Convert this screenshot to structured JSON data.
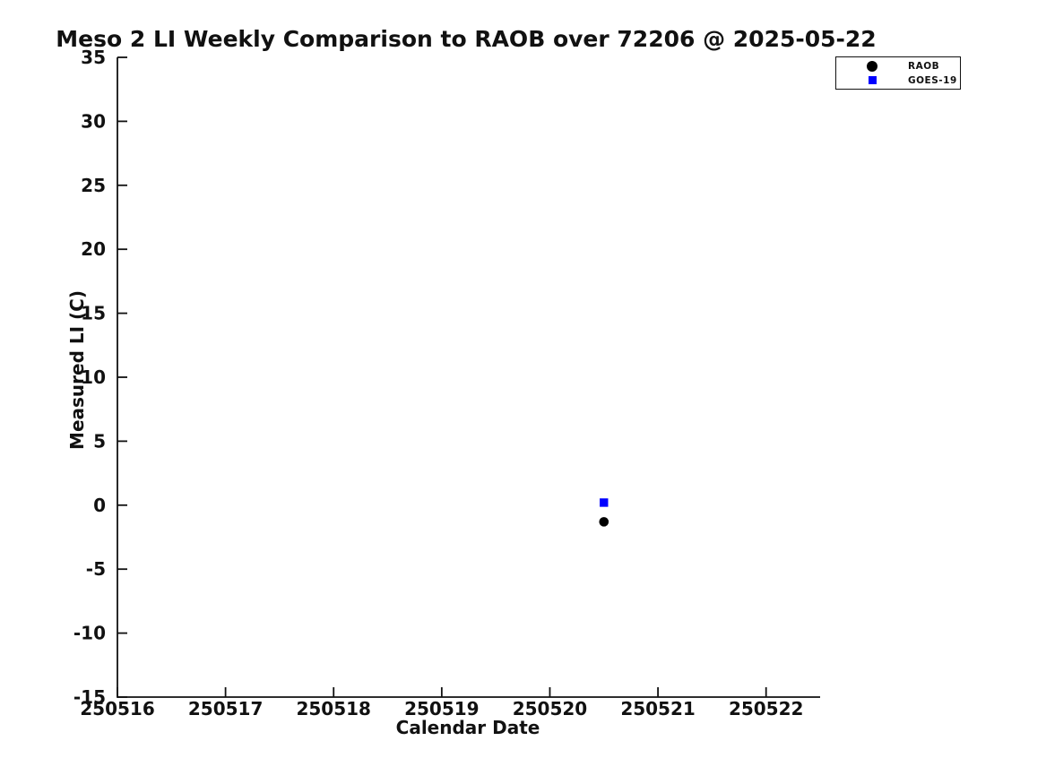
{
  "chart_data": {
    "type": "scatter",
    "title": "Meso 2 LI Weekly Comparison to RAOB over 72206 @ 2025-05-22",
    "xlabel": "Calendar Date",
    "ylabel": "Measured LI (C)",
    "xlim": [
      250516,
      250522.5
    ],
    "ylim": [
      -15,
      35
    ],
    "x_ticks": [
      250516,
      250517,
      250518,
      250519,
      250520,
      250521,
      250522
    ],
    "y_ticks": [
      -15,
      -10,
      -5,
      0,
      5,
      10,
      15,
      20,
      25,
      30,
      35
    ],
    "grid": false,
    "legend_position": "top-right",
    "series": [
      {
        "name": "RAOB",
        "marker": "circle",
        "color": "#000000",
        "points": [
          {
            "x": 250520.5,
            "y": -1.3
          }
        ]
      },
      {
        "name": "GOES-19",
        "marker": "square",
        "color": "#0000ff",
        "points": [
          {
            "x": 250520.5,
            "y": 0.2
          }
        ]
      }
    ],
    "colors": {
      "axis": "#111111",
      "text": "#111111",
      "background": "#ffffff"
    }
  }
}
